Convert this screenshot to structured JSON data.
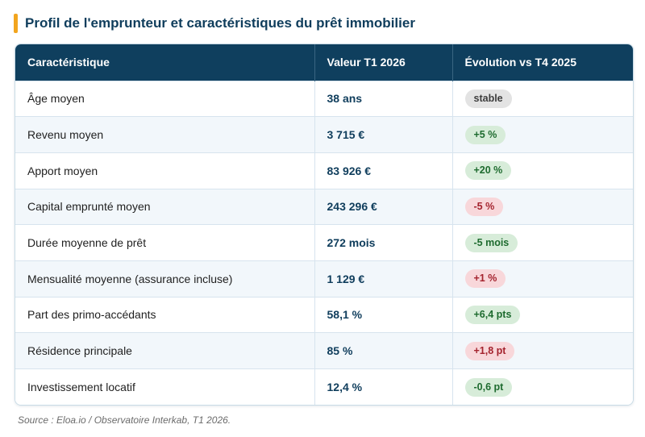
{
  "title": "Profil de l'emprunteur et caractéristiques du prêt immobilier",
  "table": {
    "headers": [
      "Caractéristique",
      "Valeur T1 2026",
      "Évolution vs T4 2025"
    ],
    "rows": [
      {
        "label": "Âge moyen",
        "value": "38 ans",
        "change": "stable",
        "trend": "neutral"
      },
      {
        "label": "Revenu moyen",
        "value": "3 715 €",
        "change": "+5 %",
        "trend": "up"
      },
      {
        "label": "Apport moyen",
        "value": "83 926 €",
        "change": "+20 %",
        "trend": "up"
      },
      {
        "label": "Capital emprunté moyen",
        "value": "243 296 €",
        "change": "-5 %",
        "trend": "down"
      },
      {
        "label": "Durée moyenne de prêt",
        "value": "272 mois",
        "change": "-5 mois",
        "trend": "up"
      },
      {
        "label": "Mensualité moyenne (assurance incluse)",
        "value": "1 129 €",
        "change": "+1 %",
        "trend": "down"
      },
      {
        "label": "Part des primo-accédants",
        "value": "58,1 %",
        "change": "+6,4 pts",
        "trend": "up"
      },
      {
        "label": "Résidence principale",
        "value": "85 %",
        "change": "+1,8 pt",
        "trend": "down"
      },
      {
        "label": "Investissement locatif",
        "value": "12,4 %",
        "change": "-0,6 pt",
        "trend": "up"
      }
    ]
  },
  "colors": {
    "header_bg": "#0f3f5e",
    "title": "#0f3d5c",
    "accent_bar": "#f2a51e",
    "pill_neutral": "#e3e3e3",
    "pill_up": "#d7ecd9",
    "pill_down": "#f8d7da"
  },
  "source": "Source : Eloa.io / Observatoire Interkab, T1 2026."
}
